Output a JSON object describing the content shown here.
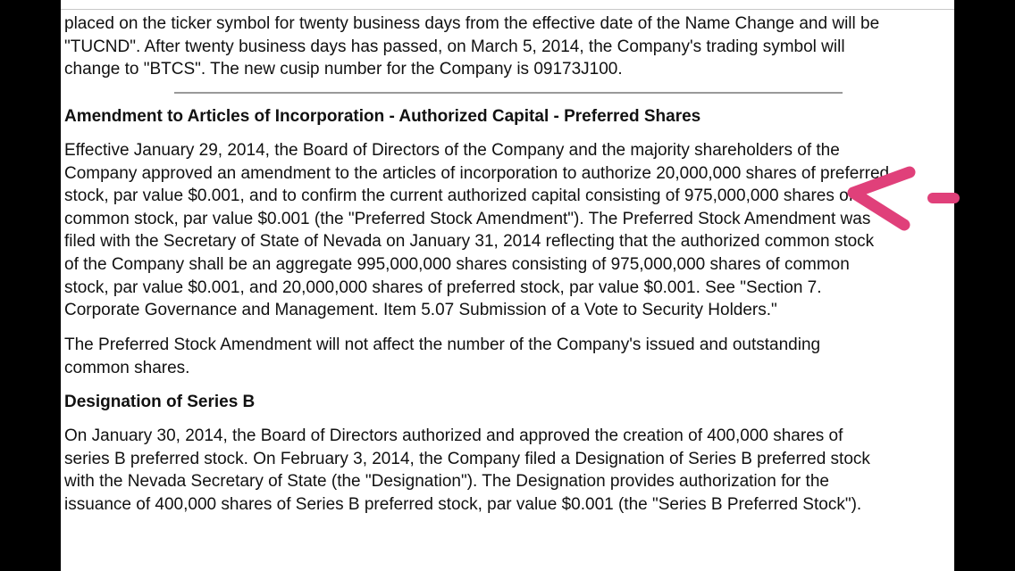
{
  "intro": {
    "lines": [
      "placed on the ticker symbol for twenty business days from the effective date of the Name Change and will be",
      "\"TUCND\". After twenty business days has passed, on March 5, 2014, the Company's trading symbol will",
      "change to \"BTCS\". The new cusip number for the Company is 09173J100."
    ]
  },
  "section1": {
    "heading": "Amendment to Articles of Incorporation - Authorized Capital - Preferred Shares",
    "para1": [
      "Effective January 29, 2014, the Board of Directors of the Company and the majority shareholders of the",
      "Company approved an amendment to the articles of incorporation to authorize 20,000,000 shares of preferred",
      "stock, par value $0.001, and to confirm the current authorized capital consisting of 975,000,000 shares of",
      "common stock, par value $0.001 (the \"Preferred Stock Amendment\"). The Preferred Stock Amendment was",
      "filed with the Secretary of State of Nevada on January 31, 2014 reflecting that the authorized common stock",
      "of the Company shall be an aggregate 995,000,000 shares consisting of 975,000,000 shares of common",
      "stock, par value $0.001, and 20,000,000 shares of preferred stock, par value $0.001. See \"Section 7.",
      "Corporate Governance and Management. Item 5.07 Submission of a Vote to Security Holders.\""
    ],
    "para2": [
      "The Preferred Stock Amendment will not affect the number of the Company's issued and outstanding",
      "common shares."
    ]
  },
  "section2": {
    "heading": "Designation of Series B",
    "para1": [
      "On January 30, 2014, the Board of Directors authorized and approved the creation of 400,000 shares of",
      "series B preferred stock. On February 3, 2014, the Company filed a Designation of Series B preferred stock",
      "with the Nevada Secretary of State (the \"Designation\"). The Designation provides authorization for the",
      "issuance of 400,000 shares of Series B preferred stock, par value $0.001 (the \"Series B Preferred Stock\")."
    ]
  },
  "annotation": {
    "icon": "pink-arrow-icon",
    "color": "#e0407a"
  }
}
